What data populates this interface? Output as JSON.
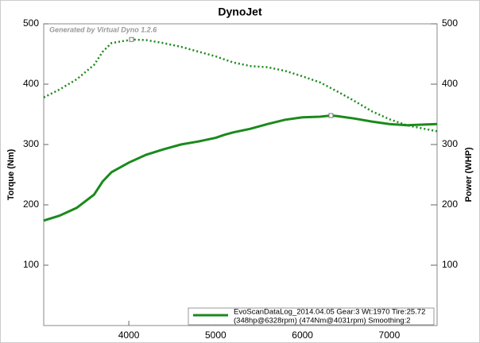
{
  "chart_data": {
    "type": "line",
    "title": "DynoJet",
    "annotation": "Generated by Virtual Dyno 1.2.6",
    "ylabel": "Torque (Nm)",
    "y2label": "Power (WHP)",
    "legend_text": [
      "EvoScanDataLog_2014.04.05 Gear:3 Wt:1970 Tire:25.72",
      "(348hp@6328rpm) (474Nm@4031rpm) Smoothing:2"
    ],
    "legend_position": "lower right",
    "xlim": [
      3020,
      7550
    ],
    "xticks": [
      4000,
      5000,
      6000,
      7000
    ],
    "ylim": [
      0,
      500
    ],
    "yticks": [
      100,
      200,
      300,
      400,
      500
    ],
    "y2lim": [
      0,
      500
    ],
    "y2ticks": [
      100,
      200,
      300,
      400,
      500
    ],
    "series": [
      {
        "color": "#1b8a1b",
        "style": "dotted",
        "x": [
          3020,
          3200,
          3400,
          3600,
          3700,
          3800,
          4000,
          4031,
          4200,
          4400,
          4600,
          4800,
          5000,
          5200,
          5400,
          5600,
          5800,
          6000,
          6200,
          6400,
          6600,
          6800,
          7000,
          7200,
          7400,
          7550
        ],
        "values": [
          378,
          391,
          408,
          432,
          454,
          468,
          473,
          474,
          473,
          468,
          462,
          454,
          446,
          436,
          430,
          428,
          422,
          413,
          403,
          388,
          372,
          355,
          342,
          332,
          326,
          322
        ]
      },
      {
        "color": "#1b8a1b",
        "style": "solid",
        "axis": "y2",
        "x": [
          3020,
          3200,
          3400,
          3600,
          3700,
          3800,
          4000,
          4200,
          4400,
          4600,
          4800,
          5000,
          5100,
          5200,
          5400,
          5600,
          5800,
          6000,
          6200,
          6328,
          6400,
          6600,
          6800,
          7000,
          7200,
          7400,
          7550
        ],
        "values": [
          174,
          182,
          195,
          217,
          239,
          254,
          270,
          283,
          292,
          300,
          305,
          311,
          316,
          320,
          326,
          334,
          341,
          345,
          346,
          348,
          347,
          343,
          338,
          334,
          332,
          333,
          334
        ]
      }
    ]
  }
}
